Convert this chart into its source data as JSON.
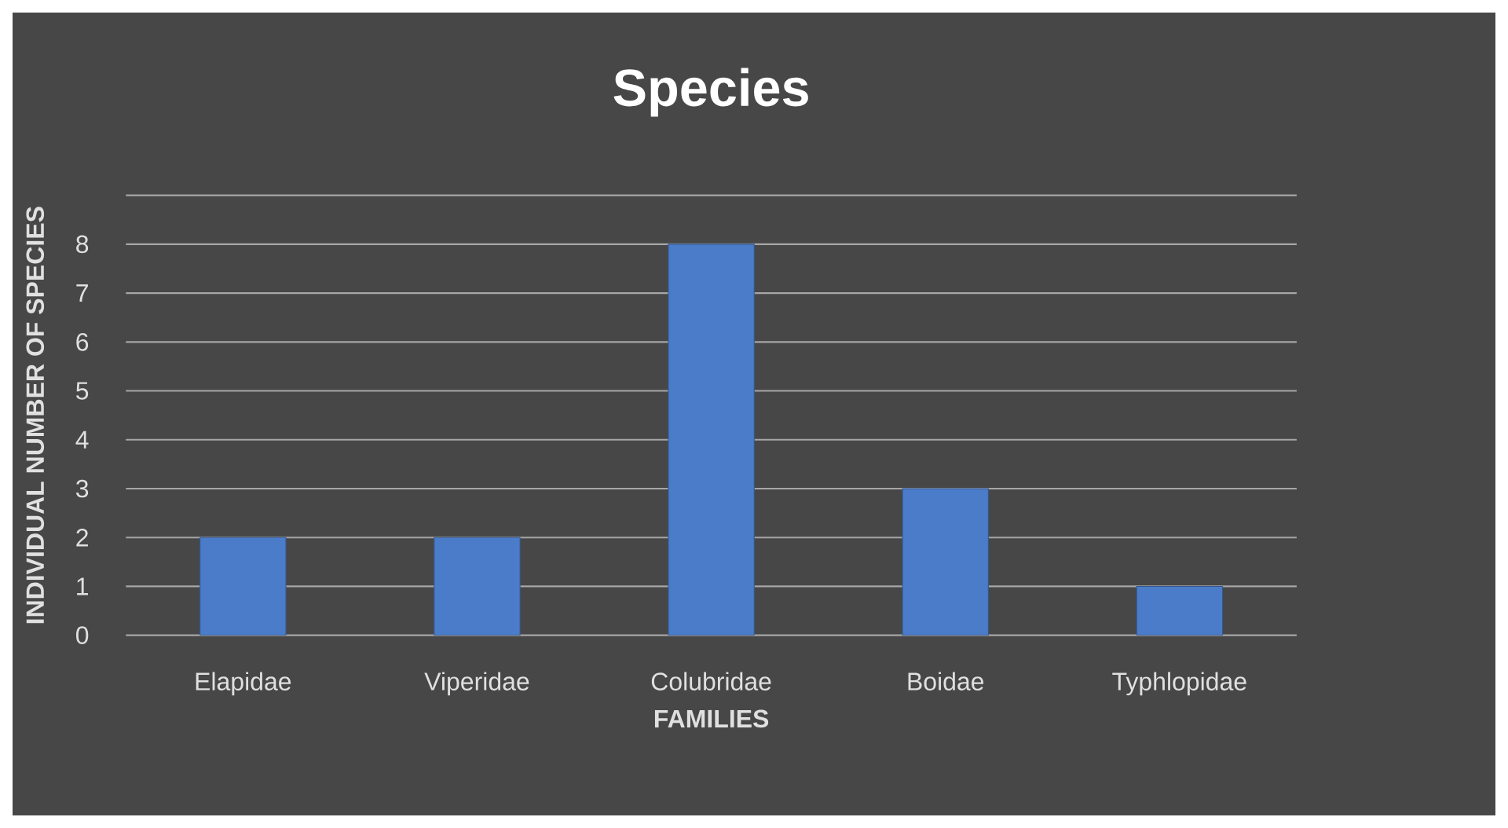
{
  "chart_data": {
    "type": "bar",
    "title": "Species",
    "xlabel": "FAMILIES",
    "ylabel": "INDIVIDUAL NUMBER OF SPECIES",
    "categories": [
      "Elapidae",
      "Viperidae",
      "Colubridae",
      "Boidae",
      "Typhlopidae"
    ],
    "values": [
      2,
      2,
      8,
      3,
      1
    ],
    "color": "#4a7cc9",
    "ylim": [
      0,
      9
    ],
    "yticks": [
      0,
      1,
      2,
      3,
      4,
      5,
      6,
      7,
      8,
      {
        "value": 9,
        "label": null
      }
    ],
    "grid": "y"
  }
}
